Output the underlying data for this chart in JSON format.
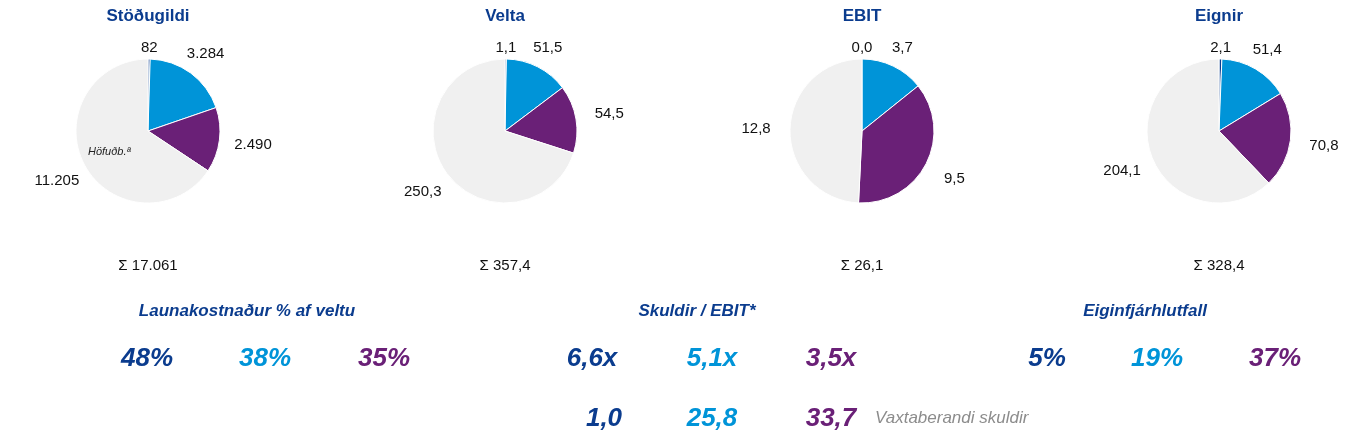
{
  "chart_data": [
    {
      "type": "pie",
      "title": "Stöðugildi",
      "categories": [
        null,
        null,
        null,
        "Höfuðb.ª"
      ],
      "values": [
        82,
        3284,
        2490,
        11205
      ],
      "value_labels": [
        "82",
        "3.284",
        "2.490",
        "11.205"
      ],
      "colors": [
        "#0b3c8e",
        "#0094d8",
        "#6a2077",
        "#f0f0f0"
      ],
      "annotations": [
        "Σ 17.061"
      ]
    },
    {
      "type": "pie",
      "title": "Velta",
      "categories": [
        null,
        null,
        null,
        null
      ],
      "values": [
        1.1,
        51.5,
        54.5,
        250.3
      ],
      "value_labels": [
        "1,1",
        "51,5",
        "54,5",
        "250,3"
      ],
      "colors": [
        "#0b3c8e",
        "#0094d8",
        "#6a2077",
        "#f0f0f0"
      ],
      "annotations": [
        "Σ 357,4"
      ]
    },
    {
      "type": "pie",
      "title": "EBIT",
      "categories": [
        null,
        null,
        null,
        null
      ],
      "values": [
        0.0,
        3.7,
        9.5,
        12.8
      ],
      "value_labels": [
        "0,0",
        "3,7",
        "9,5",
        "12,8"
      ],
      "colors": [
        "#0b3c8e",
        "#0094d8",
        "#6a2077",
        "#f0f0f0"
      ],
      "annotations": [
        "Σ 26,1"
      ]
    },
    {
      "type": "pie",
      "title": "Eignir",
      "categories": [
        null,
        null,
        null,
        null
      ],
      "values": [
        2.1,
        51.4,
        70.8,
        204.1
      ],
      "value_labels": [
        "2,1",
        "51,4",
        "70,8",
        "204,1"
      ],
      "colors": [
        "#0b3c8e",
        "#0094d8",
        "#6a2077",
        "#f0f0f0"
      ],
      "annotations": [
        "Σ 328,4"
      ]
    },
    {
      "type": "other",
      "annotations": [
        "Launakostnaður % af veltu",
        "48%",
        "38%",
        "35%",
        "Skuldir / EBIT*",
        "6,6x",
        "5,1x",
        "3,5x",
        "1,0",
        "25,8",
        "33,7",
        "Vaxtaberandi skuldir",
        "Eiginfjárhlutfall",
        "5%",
        "19%",
        "37%"
      ],
      "colors": [
        "#0b3c8e",
        "#0b3c8e",
        "#0094d8",
        "#6a2077",
        "#0b3c8e",
        "#0b3c8e",
        "#0094d8",
        "#6a2077",
        "#0b3c8e",
        "#0094d8",
        "#6a2077",
        "#8c8c8c",
        "#0b3c8e",
        "#0b3c8e",
        "#0094d8",
        "#6a2077"
      ]
    }
  ]
}
